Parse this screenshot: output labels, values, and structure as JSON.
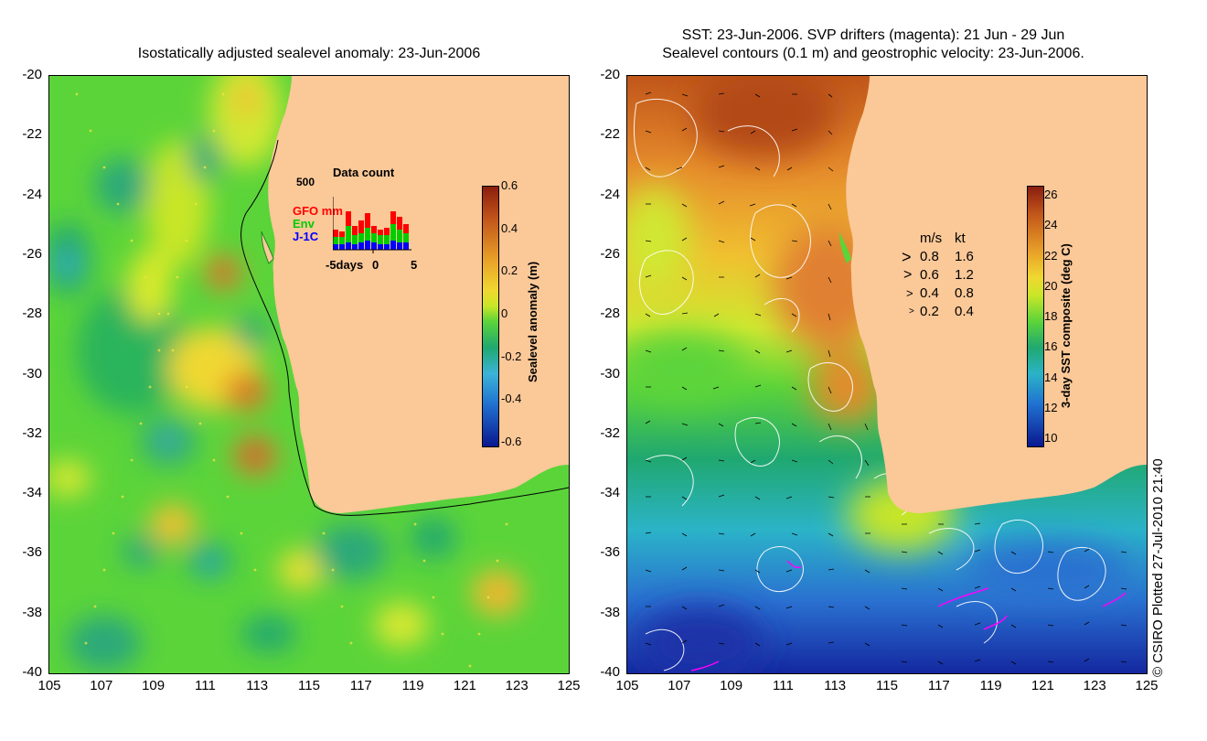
{
  "left_panel": {
    "title": "Isostatically adjusted sealevel anomaly: 23-Jun-2006",
    "colorbar": {
      "label": "Sealevel anomaly (m)",
      "ticks": [
        "0.6",
        "0.4",
        "0.2",
        "0",
        "-0.2",
        "-0.4",
        "-0.6"
      ]
    },
    "inset": {
      "title": "Data count",
      "ymax": "500",
      "series": [
        "GFO mm",
        "Env",
        "J-1C"
      ],
      "series_colors": [
        "#ff0000",
        "#00cc00",
        "#0000ff"
      ],
      "xticks": [
        "-5days",
        "0",
        "5"
      ]
    }
  },
  "right_panel": {
    "title_line1": "SST: 23-Jun-2006. SVP drifters (magenta): 21 Jun - 29 Jun",
    "title_line2": "Sealevel contours (0.1 m) and geostrophic velocity: 23-Jun-2006.",
    "colorbar": {
      "label": "3-day SST composite (deg C)",
      "ticks": [
        "26",
        "24",
        "22",
        "20",
        "18",
        "16",
        "14",
        "12",
        "10"
      ]
    },
    "velocity_legend": {
      "header_ms": "m/s",
      "header_kt": "kt",
      "rows": [
        {
          "ms": "0.8",
          "kt": "1.6"
        },
        {
          "ms": "0.6",
          "kt": "1.2"
        },
        {
          "ms": "0.4",
          "kt": "0.8"
        },
        {
          "ms": "0.2",
          "kt": "0.4"
        }
      ]
    }
  },
  "axes": {
    "y_ticks": [
      "-20",
      "-22",
      "-24",
      "-26",
      "-28",
      "-30",
      "-32",
      "-34",
      "-36",
      "-38",
      "-40"
    ],
    "x_ticks": [
      "105",
      "107",
      "109",
      "111",
      "113",
      "115",
      "117",
      "119",
      "121",
      "123",
      "125"
    ]
  },
  "credit": "© CSIRO Plotted 27-Jul-2010 21:40",
  "colors": {
    "land": "#fbc898",
    "coast": "#000000",
    "drifter": "#ff00ff"
  }
}
